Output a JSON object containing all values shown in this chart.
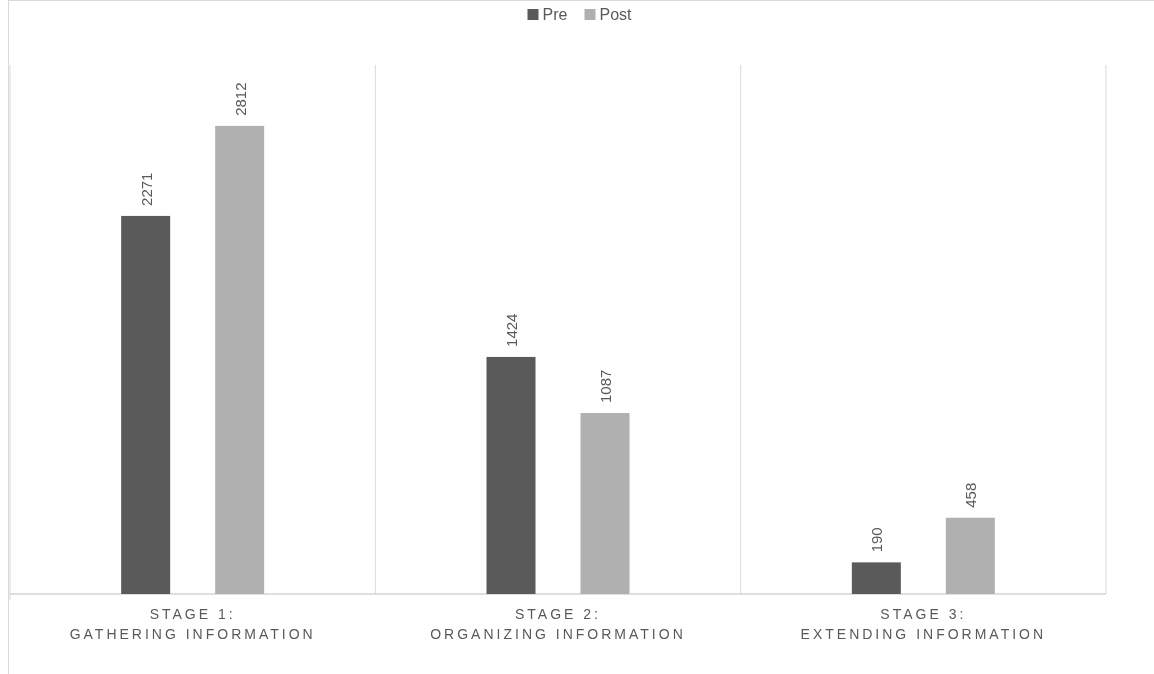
{
  "chart_data": {
    "type": "bar",
    "categories": [
      "STAGE 1:\nGATHERING INFORMATION",
      "STAGE 2:\nORGANIZING INFORMATION",
      "STAGE 3:\nEXTENDING INFORMATION"
    ],
    "series": [
      {
        "name": "Pre",
        "color": "#5a5a5a",
        "values": [
          2271,
          1424,
          190
        ]
      },
      {
        "name": "Post",
        "color": "#b0b0b0",
        "values": [
          2812,
          1087,
          458
        ]
      }
    ],
    "data_labels": true,
    "grid": "x",
    "legend": "top"
  }
}
